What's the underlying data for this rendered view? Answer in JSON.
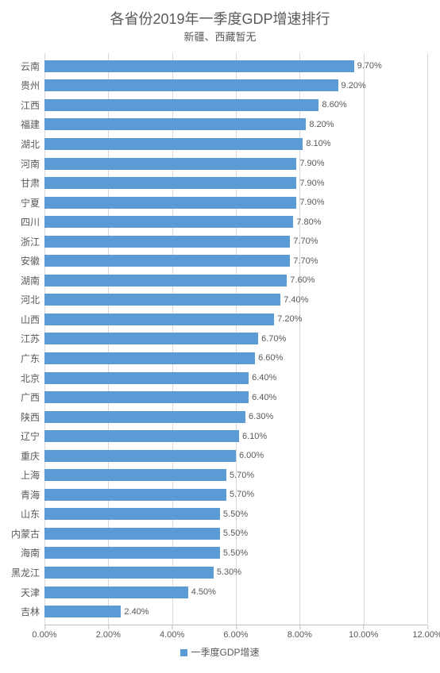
{
  "chart": {
    "type": "bar-horizontal",
    "title": "各省份2019年一季度GDP增速排行",
    "title_fontsize": 18,
    "title_color": "#595959",
    "subtitle": "新疆、西藏暂无",
    "subtitle_fontsize": 13,
    "subtitle_color": "#595959",
    "background_color": "#ffffff",
    "bar_color": "#5b9bd5",
    "grid_color": "#d9d9d9",
    "axis_color": "#bfbfbf",
    "text_color": "#595959",
    "label_fontsize": 12,
    "value_label_fontsize": 11,
    "x_axis": {
      "min": 0.0,
      "max": 12.0,
      "tick_step": 2.0,
      "ticks": [
        "0.00%",
        "2.00%",
        "4.00%",
        "6.00%",
        "8.00%",
        "10.00%",
        "12.00%"
      ],
      "tick_fontsize": 11
    },
    "legend": {
      "label": "一季度GDP增速",
      "swatch_color": "#5b9bd5"
    },
    "data": [
      {
        "province": "云南",
        "value": 9.7,
        "label": "9.70%"
      },
      {
        "province": "贵州",
        "value": 9.2,
        "label": "9.20%"
      },
      {
        "province": "江西",
        "value": 8.6,
        "label": "8.60%"
      },
      {
        "province": "福建",
        "value": 8.2,
        "label": "8.20%"
      },
      {
        "province": "湖北",
        "value": 8.1,
        "label": "8.10%"
      },
      {
        "province": "河南",
        "value": 7.9,
        "label": "7.90%"
      },
      {
        "province": "甘肃",
        "value": 7.9,
        "label": "7.90%"
      },
      {
        "province": "宁夏",
        "value": 7.9,
        "label": "7.90%"
      },
      {
        "province": "四川",
        "value": 7.8,
        "label": "7.80%"
      },
      {
        "province": "浙江",
        "value": 7.7,
        "label": "7.70%"
      },
      {
        "province": "安徽",
        "value": 7.7,
        "label": "7.70%"
      },
      {
        "province": "湖南",
        "value": 7.6,
        "label": "7.60%"
      },
      {
        "province": "河北",
        "value": 7.4,
        "label": "7.40%"
      },
      {
        "province": "山西",
        "value": 7.2,
        "label": "7.20%"
      },
      {
        "province": "江苏",
        "value": 6.7,
        "label": "6.70%"
      },
      {
        "province": "广东",
        "value": 6.6,
        "label": "6.60%"
      },
      {
        "province": "北京",
        "value": 6.4,
        "label": "6.40%"
      },
      {
        "province": "广西",
        "value": 6.4,
        "label": "6.40%"
      },
      {
        "province": "陕西",
        "value": 6.3,
        "label": "6.30%"
      },
      {
        "province": "辽宁",
        "value": 6.1,
        "label": "6.10%"
      },
      {
        "province": "重庆",
        "value": 6.0,
        "label": "6.00%"
      },
      {
        "province": "上海",
        "value": 5.7,
        "label": "5.70%"
      },
      {
        "province": "青海",
        "value": 5.7,
        "label": "5.70%"
      },
      {
        "province": "山东",
        "value": 5.5,
        "label": "5.50%"
      },
      {
        "province": "内蒙古",
        "value": 5.5,
        "label": "5.50%"
      },
      {
        "province": "海南",
        "value": 5.5,
        "label": "5.50%"
      },
      {
        "province": "黑龙江",
        "value": 5.3,
        "label": "5.30%"
      },
      {
        "province": "天津",
        "value": 4.5,
        "label": "4.50%"
      },
      {
        "province": "吉林",
        "value": 2.4,
        "label": "2.40%"
      }
    ]
  }
}
